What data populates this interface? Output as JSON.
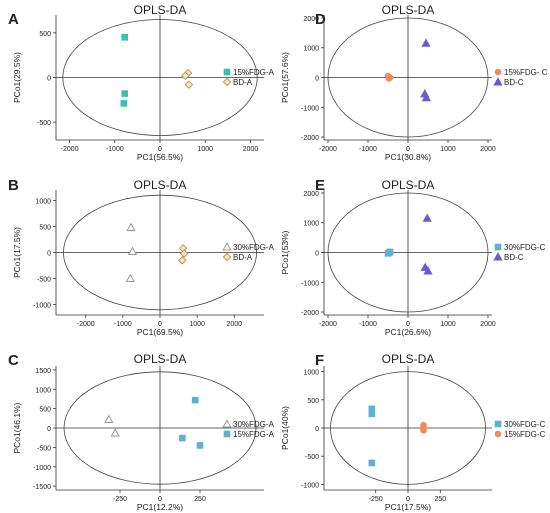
{
  "colors": {
    "teal": "#3dbfa8",
    "tan_fill": "#f3e6c8",
    "tan_stroke": "#b99a63",
    "purple": "#6b5ccc",
    "orange": "#f08a5d",
    "blue": "#5fb1cf",
    "axis": "#333333",
    "ellipse": "#444444"
  },
  "chart_data": [
    {
      "panel": "A",
      "type": "scatter",
      "title": "OPLS-DA",
      "xlabel": "PC1(56.5%)",
      "ylabel": "PCo1(29.5%)",
      "xlim": [
        -2300,
        2300
      ],
      "ylim": [
        -700,
        700
      ],
      "xticks": [
        -2000,
        -1000,
        0,
        1000,
        2000
      ],
      "yticks": [
        -500,
        0,
        500
      ],
      "ellipse": {
        "rx": 2150,
        "ry": 650
      },
      "legend_position": "right",
      "series": [
        {
          "name": "15%FDG-A",
          "marker": "square",
          "color": "teal",
          "x": [
            -780,
            -780,
            -800
          ],
          "y": [
            450,
            -180,
            -290
          ]
        },
        {
          "name": "BD-A",
          "marker": "diamond",
          "color": "tan",
          "x": [
            620,
            560,
            640
          ],
          "y": [
            50,
            20,
            -80
          ]
        }
      ]
    },
    {
      "panel": "B",
      "type": "scatter",
      "title": "OPLS-DA",
      "xlabel": "PC1(69.5%)",
      "ylabel": "PCo1(17.5%)",
      "xlim": [
        -2800,
        2800
      ],
      "ylim": [
        -1200,
        1200
      ],
      "xticks": [
        -2000,
        -1000,
        0,
        1000,
        2000
      ],
      "yticks": [
        -1000,
        -500,
        0,
        500,
        1000
      ],
      "ellipse": {
        "rx": 2600,
        "ry": 1100
      },
      "legend_position": "right",
      "series": [
        {
          "name": "30%FDG-A",
          "marker": "triangle-open",
          "color": "gray",
          "x": [
            -780,
            -740,
            -800
          ],
          "y": [
            480,
            20,
            -500
          ]
        },
        {
          "name": "BD-A",
          "marker": "diamond",
          "color": "tan",
          "x": [
            620,
            650,
            600
          ],
          "y": [
            80,
            -20,
            -150
          ]
        }
      ]
    },
    {
      "panel": "C",
      "type": "scatter",
      "title": "OPLS-DA",
      "xlabel": "PC1(12.2%)",
      "ylabel": "PCo1(46.1%)",
      "xlim": [
        -650,
        650
      ],
      "ylim": [
        -1600,
        1600
      ],
      "xticks": [
        -250,
        0,
        250
      ],
      "yticks": [
        -1500,
        -1000,
        -500,
        0,
        500,
        1000,
        1500
      ],
      "ellipse": {
        "rx": 600,
        "ry": 1450
      },
      "legend_position": "right",
      "series": [
        {
          "name": "30%FDG-A",
          "marker": "triangle-open",
          "color": "gray",
          "x": [
            -320,
            -280
          ],
          "y": [
            220,
            -130
          ]
        },
        {
          "name": "15%FDG-A",
          "marker": "square",
          "color": "blue",
          "x": [
            220,
            140,
            250
          ],
          "y": [
            720,
            -260,
            -450
          ]
        }
      ]
    },
    {
      "panel": "D",
      "type": "scatter",
      "title": "OPLS-DA",
      "xlabel": "PC1(30.8%)",
      "ylabel": "PCo1(57.6%)",
      "xlim": [
        -2100,
        2100
      ],
      "ylim": [
        -2100,
        2100
      ],
      "xticks": [
        -2000,
        -1000,
        0,
        1000,
        2000
      ],
      "yticks": [
        -2000,
        -1000,
        0,
        1000,
        2000
      ],
      "ellipse": {
        "rx": 2000,
        "ry": 2000
      },
      "legend_position": "right",
      "series": [
        {
          "name": "15%FDG- C",
          "marker": "circle",
          "color": "orange",
          "x": [
            -500,
            -450,
            -480
          ],
          "y": [
            50,
            0,
            -30
          ]
        },
        {
          "name": "BD-C",
          "marker": "triangle",
          "color": "purple",
          "x": [
            450,
            420,
            460
          ],
          "y": [
            1150,
            -550,
            -680
          ]
        }
      ]
    },
    {
      "panel": "E",
      "type": "scatter",
      "title": "OPLS-DA",
      "xlabel": "PC1(26.6%)",
      "ylabel": "PCo1(53%)",
      "xlim": [
        -2100,
        2100
      ],
      "ylim": [
        -2100,
        2100
      ],
      "xticks": [
        -2000,
        -1000,
        0,
        1000,
        2000
      ],
      "yticks": [
        -2000,
        -1000,
        0,
        1000,
        2000
      ],
      "ellipse": {
        "rx": 2000,
        "ry": 2000
      },
      "legend_position": "right",
      "series": [
        {
          "name": "30%FDG-C",
          "marker": "square",
          "color": "blue",
          "x": [
            -500,
            -450,
            -470
          ],
          "y": [
            -30,
            20,
            -10
          ]
        },
        {
          "name": "BD-C",
          "marker": "triangle",
          "color": "purple",
          "x": [
            480,
            430,
            500
          ],
          "y": [
            1150,
            -500,
            -620
          ]
        }
      ]
    },
    {
      "panel": "F",
      "type": "scatter",
      "title": "OPLS-DA",
      "xlabel": "PC1(17.5%)",
      "ylabel": "PCo1(40%)",
      "xlim": [
        -650,
        650
      ],
      "ylim": [
        -1100,
        1100
      ],
      "xticks": [
        -250,
        0,
        250
      ],
      "yticks": [
        -1000,
        -500,
        0,
        500,
        1000
      ],
      "ellipse": {
        "rx": 600,
        "ry": 1000
      },
      "legend_position": "right",
      "series": [
        {
          "name": "30%FDG-C",
          "marker": "square",
          "color": "blue",
          "x": [
            -280,
            -280,
            -280
          ],
          "y": [
            340,
            250,
            -620
          ]
        },
        {
          "name": "15%FDG-C",
          "marker": "circle",
          "color": "orange",
          "x": [
            120,
            120,
            120
          ],
          "y": [
            50,
            0,
            -40
          ]
        }
      ]
    }
  ]
}
